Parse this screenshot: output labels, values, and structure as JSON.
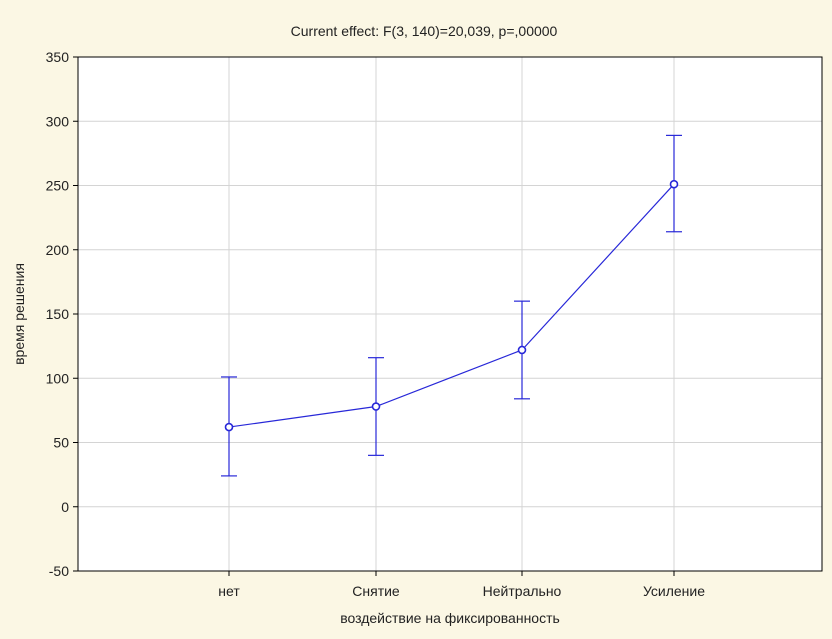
{
  "chart_data": {
    "type": "line",
    "title": "Current effect: F(3, 140)=20,039, p=,00000",
    "xlabel": "воздействие на фиксированность",
    "ylabel": "время решения",
    "categories": [
      "нет",
      "Снятие",
      "Нейтрально",
      "Усиление"
    ],
    "series": [
      {
        "values": [
          62,
          78,
          122,
          251
        ],
        "error_low": [
          24,
          40,
          84,
          214
        ],
        "error_high": [
          101,
          116,
          160,
          289
        ]
      }
    ],
    "ylim": [
      -50,
      350
    ],
    "yticks": [
      -50,
      0,
      50,
      100,
      150,
      200,
      250,
      300,
      350
    ],
    "ytick_labels": [
      "-50",
      "0",
      "50",
      "100",
      "150",
      "200",
      "250",
      "300",
      "350"
    ],
    "grid": true,
    "colors": {
      "background": "#fbf7e4",
      "plot_area": "#ffffff",
      "series": "#2828d8",
      "grid": "#d4d4d4",
      "frame": "#000000"
    }
  }
}
